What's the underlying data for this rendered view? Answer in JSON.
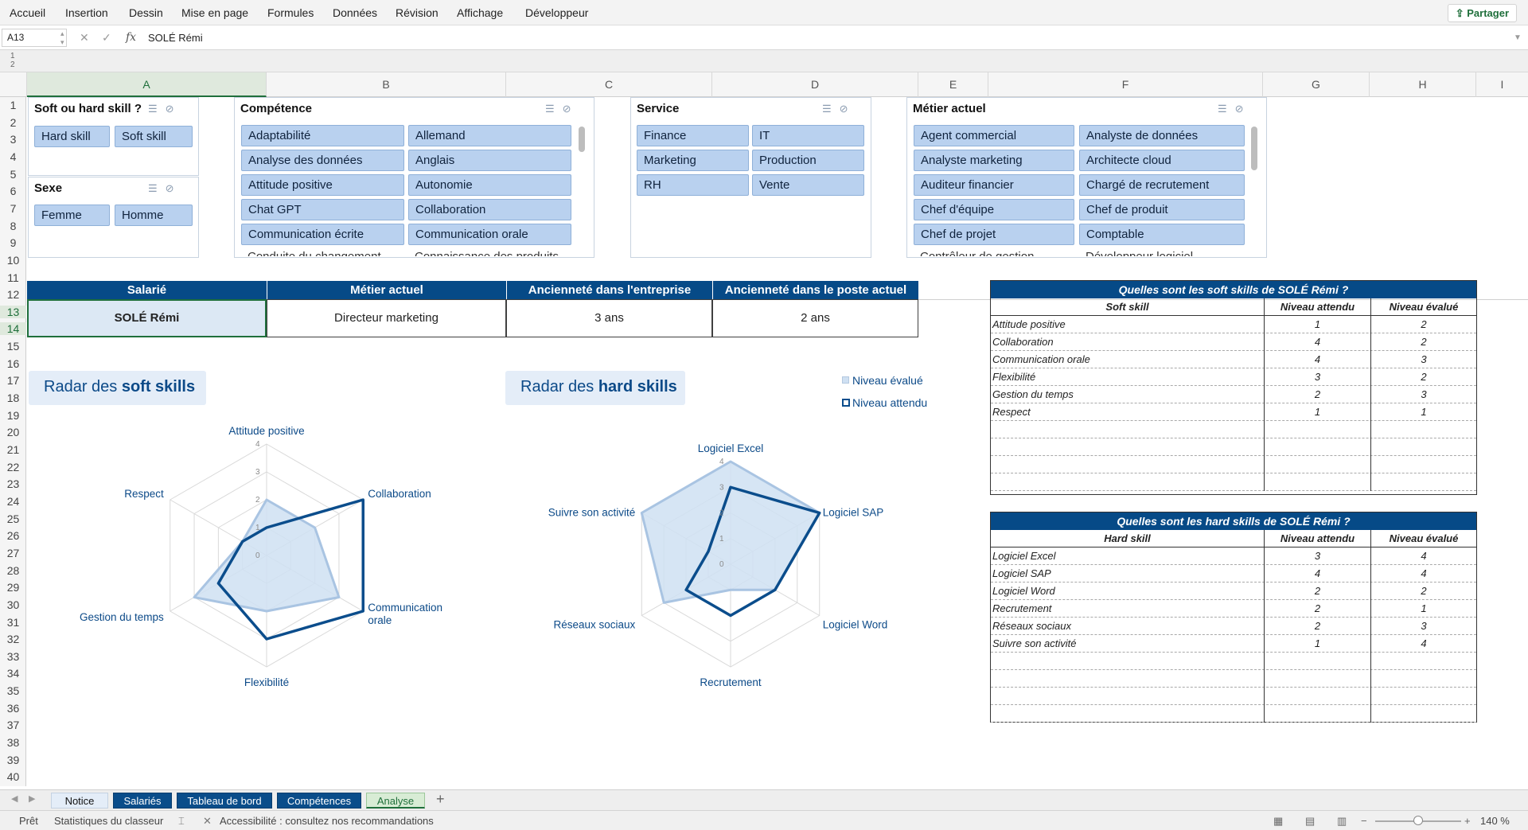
{
  "ribbon": {
    "menus": [
      "Accueil",
      "Insertion",
      "Dessin",
      "Mise en page",
      "Formules",
      "Données",
      "Révision",
      "Affichage",
      "Développeur"
    ],
    "share_label": "Partager"
  },
  "formula_bar": {
    "cell_ref": "A13",
    "content": "SOLÉ Rémi"
  },
  "outline_levels": [
    "1",
    "2"
  ],
  "columns": [
    "A",
    "B",
    "C",
    "D",
    "E",
    "F",
    "G",
    "H",
    "I"
  ],
  "rows": [
    "1",
    "2",
    "3",
    "4",
    "5",
    "6",
    "7",
    "8",
    "9",
    "10",
    "11",
    "12",
    "13",
    "14",
    "15",
    "16",
    "17",
    "18",
    "19",
    "20",
    "21",
    "22",
    "23",
    "24",
    "25",
    "26",
    "27",
    "28",
    "29",
    "30",
    "31",
    "32",
    "33",
    "34",
    "35",
    "36",
    "37",
    "38",
    "39",
    "40"
  ],
  "slicers": {
    "skill_type": {
      "title": "Soft ou hard skill ?",
      "items": [
        "Hard skill",
        "Soft skill"
      ]
    },
    "sexe": {
      "title": "Sexe",
      "items": [
        "Femme",
        "Homme"
      ]
    },
    "competence": {
      "title": "Compétence",
      "items": [
        "Adaptabilité",
        "Allemand",
        "Analyse des données",
        "Anglais",
        "Attitude positive",
        "Autonomie",
        "Chat GPT",
        "Collaboration",
        "Communication écrite",
        "Communication orale"
      ],
      "partial": [
        "Conduite du changement",
        "Connaissance des produits"
      ]
    },
    "service": {
      "title": "Service",
      "items": [
        "Finance",
        "IT",
        "Marketing",
        "Production",
        "RH",
        "Vente"
      ]
    },
    "metier": {
      "title": "Métier actuel",
      "items": [
        "Agent commercial",
        "Analyste de données",
        "Analyste marketing",
        "Architecte cloud",
        "Auditeur financier",
        "Chargé de recrutement",
        "Chef d'équipe",
        "Chef de produit",
        "Chef de projet",
        "Comptable"
      ],
      "partial": [
        "Contrôleur de gestion",
        "Développeur logiciel"
      ]
    }
  },
  "employee_table": {
    "headers": [
      "Salarié",
      "Métier actuel",
      "Ancienneté dans l'entreprise",
      "Ancienneté dans le poste actuel"
    ],
    "values": [
      "SOLÉ Rémi",
      "Directeur marketing",
      "3 ans",
      "2 ans"
    ]
  },
  "chart_titles": {
    "soft": {
      "prefix": "Radar des ",
      "bold": "soft skills"
    },
    "hard": {
      "prefix": "Radar des ",
      "bold": "hard skills"
    }
  },
  "legend": {
    "evaluated": "Niveau évalué",
    "expected": "Niveau attendu"
  },
  "colors": {
    "header_blue": "#064a87",
    "evaluated_fill": "#cfe0f2",
    "expected_line": "#0b4d8c",
    "slicer_btn": "#b9d1ef"
  },
  "chart_data": [
    {
      "type": "radar",
      "title": "Radar des soft skills",
      "categories": [
        "Attitude positive",
        "Collaboration",
        "Communication orale",
        "Flexibilité",
        "Gestion du temps",
        "Respect"
      ],
      "ticks": [
        "0",
        "1",
        "2",
        "3",
        "4"
      ],
      "range": [
        0,
        4
      ],
      "series": [
        {
          "name": "Niveau évalué",
          "values": [
            2,
            2,
            3,
            2,
            3,
            1
          ]
        },
        {
          "name": "Niveau attendu",
          "values": [
            1,
            4,
            4,
            3,
            2,
            1
          ]
        }
      ]
    },
    {
      "type": "radar",
      "title": "Radar des hard skills",
      "categories": [
        "Logiciel Excel",
        "Logiciel SAP",
        "Logiciel Word",
        "Recrutement",
        "Réseaux sociaux",
        "Suivre son activité"
      ],
      "ticks": [
        "0",
        "1",
        "2",
        "3",
        "4"
      ],
      "range": [
        0,
        4
      ],
      "series": [
        {
          "name": "Niveau évalué",
          "values": [
            4,
            4,
            2,
            1,
            3,
            4
          ]
        },
        {
          "name": "Niveau attendu",
          "values": [
            3,
            4,
            2,
            2,
            2,
            1
          ]
        }
      ]
    }
  ],
  "soft_table": {
    "title": "Quelles sont les soft skills de SOLÉ Rémi ?",
    "headers": [
      "Soft skill",
      "Niveau attendu",
      "Niveau évalué"
    ],
    "rows": [
      [
        "Attitude positive",
        "1",
        "2"
      ],
      [
        "Collaboration",
        "4",
        "2"
      ],
      [
        "Communication orale",
        "4",
        "3"
      ],
      [
        "Flexibilité",
        "3",
        "2"
      ],
      [
        "Gestion du temps",
        "2",
        "3"
      ],
      [
        "Respect",
        "1",
        "1"
      ]
    ]
  },
  "hard_table": {
    "title": "Quelles sont les hard skills de SOLÉ Rémi ?",
    "headers": [
      "Hard skill",
      "Niveau attendu",
      "Niveau évalué"
    ],
    "rows": [
      [
        "Logiciel Excel",
        "3",
        "4"
      ],
      [
        "Logiciel SAP",
        "4",
        "4"
      ],
      [
        "Logiciel Word",
        "2",
        "2"
      ],
      [
        "Recrutement",
        "2",
        "1"
      ],
      [
        "Réseaux sociaux",
        "2",
        "3"
      ],
      [
        "Suivre son activité",
        "1",
        "4"
      ]
    ]
  },
  "sheet_tabs": [
    "Notice",
    "Salariés",
    "Tableau de bord",
    "Compétences",
    "Analyse"
  ],
  "status": {
    "ready": "Prêt",
    "stats": "Statistiques du classeur",
    "accessibility": "Accessibilité : consultez nos recommandations",
    "zoom": "140 %"
  }
}
